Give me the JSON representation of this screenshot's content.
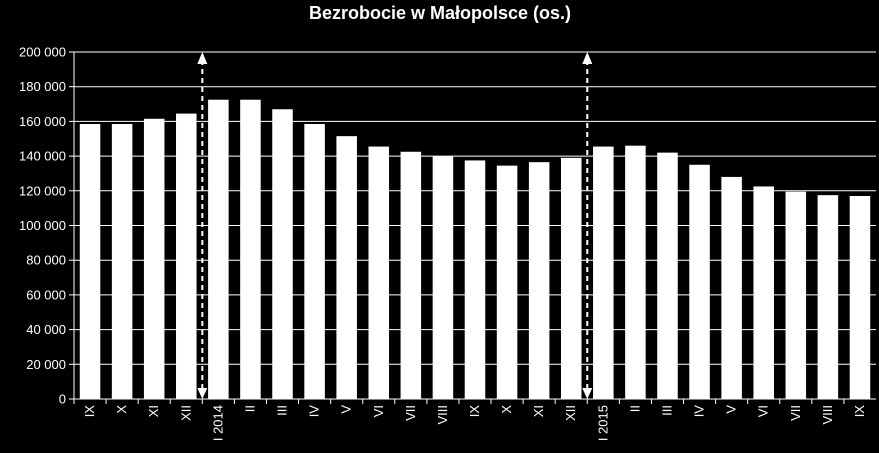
{
  "chart_data": {
    "type": "bar",
    "title": "Bezrobocie w Małopolsce (os.)",
    "xlabel": "",
    "ylabel": "",
    "ylim": [
      0,
      200000
    ],
    "y_ticks": [
      "0",
      "20 000",
      "40 000",
      "60 000",
      "80 000",
      "100 000",
      "120 000",
      "140 000",
      "160 000",
      "180 000",
      "200 000"
    ],
    "y_tick_values": [
      0,
      20000,
      40000,
      60000,
      80000,
      100000,
      120000,
      140000,
      160000,
      180000,
      200000
    ],
    "categories": [
      "IX",
      "X",
      "XI",
      "XII",
      "I 2014",
      "II",
      "III",
      "IV",
      "V",
      "VI",
      "VII",
      "VIII",
      "IX",
      "X",
      "XI",
      "XII",
      "I 2015",
      "II",
      "III",
      "IV",
      "V",
      "VI",
      "VII",
      "VIII",
      "IX"
    ],
    "values": [
      158500,
      158500,
      161500,
      164500,
      172500,
      172500,
      167000,
      158500,
      151500,
      145500,
      142500,
      140000,
      137500,
      134500,
      136500,
      139000,
      145500,
      146000,
      142000,
      135000,
      128000,
      122500,
      119500,
      117500,
      117000
    ],
    "grid": true,
    "bar_color": "#ffffff",
    "background_color": "#000000",
    "grid_color": "#ffffff",
    "markers": [
      {
        "between_categories": [
          3,
          4
        ],
        "style": "dashed double arrow"
      },
      {
        "between_categories": [
          15,
          16
        ],
        "style": "dashed double arrow"
      }
    ]
  }
}
